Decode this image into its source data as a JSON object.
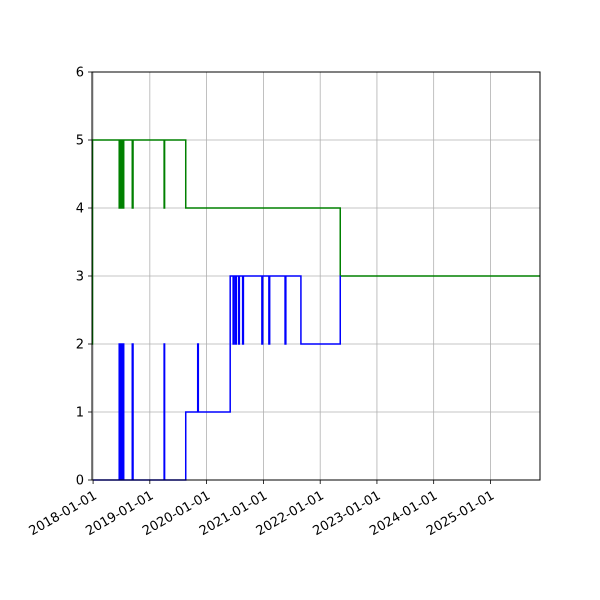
{
  "chart_data": {
    "type": "line",
    "title": "",
    "xlabel": "",
    "ylabel": "",
    "grid": true,
    "xlim": [
      "2017-12-25",
      "2025-11-15"
    ],
    "ylim": [
      0,
      6
    ],
    "yticks": [
      0,
      1,
      2,
      3,
      4,
      5,
      6
    ],
    "xticks": [
      "2018-01-01",
      "2019-01-01",
      "2020-01-01",
      "2021-01-01",
      "2022-01-01",
      "2023-01-01",
      "2024-01-01",
      "2025-01-01"
    ],
    "series": [
      {
        "color": "#008000",
        "step": "post",
        "points": [
          [
            "2017-12-26",
            2
          ],
          [
            "2017-12-28",
            5
          ],
          [
            "2018-06-18",
            4
          ],
          [
            "2018-06-22",
            5
          ],
          [
            "2018-06-26",
            4
          ],
          [
            "2018-07-01",
            5
          ],
          [
            "2018-07-05",
            4
          ],
          [
            "2018-07-09",
            5
          ],
          [
            "2018-07-13",
            4
          ],
          [
            "2018-07-17",
            5
          ],
          [
            "2018-09-10",
            4
          ],
          [
            "2018-09-15",
            5
          ],
          [
            "2019-04-03",
            4
          ],
          [
            "2019-04-06",
            5
          ],
          [
            "2019-08-20",
            4
          ],
          [
            "2022-05-10",
            3
          ],
          [
            "2025-11-15",
            3
          ]
        ]
      },
      {
        "color": "#0000ff",
        "step": "post",
        "points": [
          [
            "2018-01-01",
            0
          ],
          [
            "2018-06-18",
            2
          ],
          [
            "2018-06-22",
            0
          ],
          [
            "2018-06-26",
            2
          ],
          [
            "2018-07-01",
            0
          ],
          [
            "2018-07-05",
            2
          ],
          [
            "2018-07-09",
            0
          ],
          [
            "2018-07-13",
            2
          ],
          [
            "2018-07-17",
            0
          ],
          [
            "2018-09-10",
            2
          ],
          [
            "2018-09-15",
            0
          ],
          [
            "2019-04-03",
            2
          ],
          [
            "2019-04-06",
            0
          ],
          [
            "2019-08-20",
            1
          ],
          [
            "2019-11-05",
            2
          ],
          [
            "2019-11-09",
            1
          ],
          [
            "2020-06-01",
            3
          ],
          [
            "2020-06-20",
            2
          ],
          [
            "2020-06-25",
            3
          ],
          [
            "2020-07-05",
            2
          ],
          [
            "2020-07-10",
            3
          ],
          [
            "2020-07-25",
            2
          ],
          [
            "2020-07-30",
            3
          ],
          [
            "2020-08-20",
            2
          ],
          [
            "2020-08-25",
            3
          ],
          [
            "2020-12-22",
            2
          ],
          [
            "2020-12-27",
            3
          ],
          [
            "2021-02-05",
            2
          ],
          [
            "2021-02-10",
            3
          ],
          [
            "2021-05-20",
            2
          ],
          [
            "2021-05-25",
            3
          ],
          [
            "2021-08-30",
            2
          ],
          [
            "2022-05-10",
            3
          ],
          [
            "2022-05-11",
            3
          ]
        ]
      }
    ]
  }
}
